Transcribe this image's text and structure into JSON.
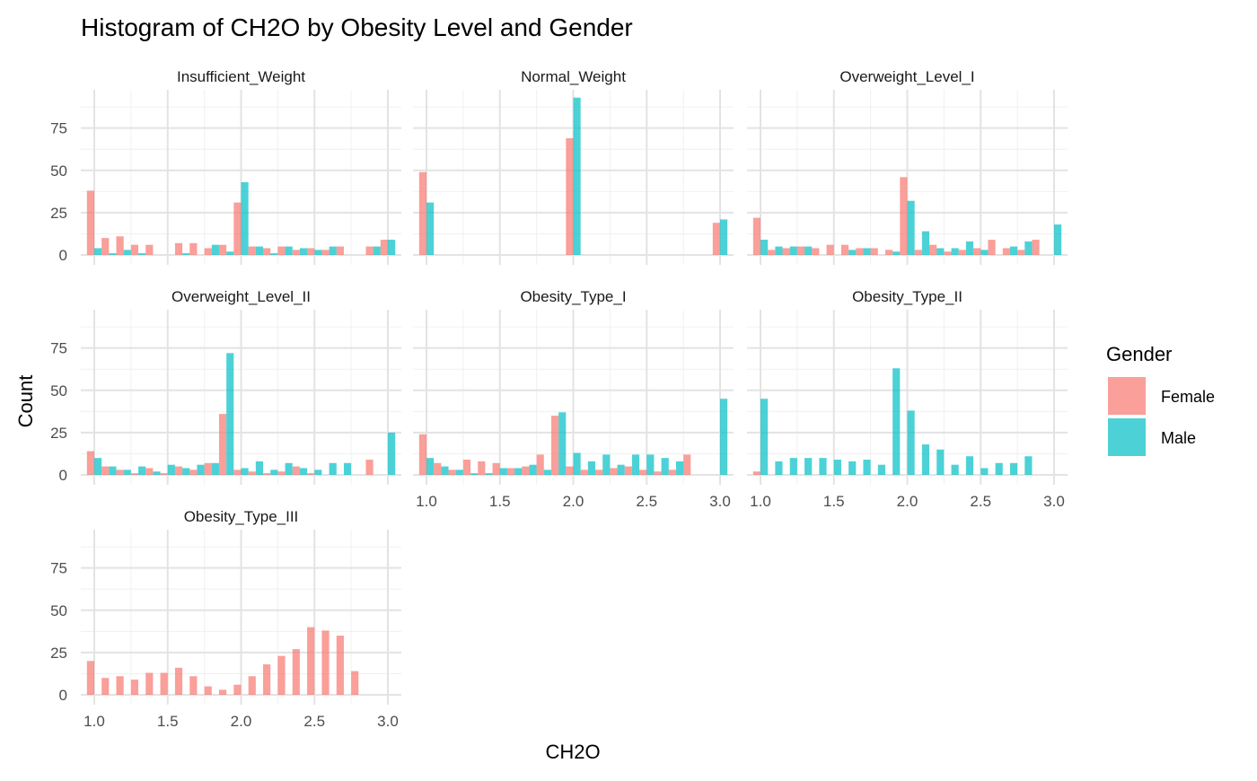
{
  "chart_data": {
    "type": "bar",
    "title": "Histogram of CH2O by Obesity Level and Gender",
    "xlabel": "CH2O",
    "ylabel": "Count",
    "xlim": [
      1.0,
      3.0
    ],
    "ylim": [
      0,
      95
    ],
    "x_ticks": [
      "1.0",
      "1.5",
      "2.0",
      "2.5",
      "3.0"
    ],
    "y_ticks": [
      "0",
      "25",
      "50",
      "75"
    ],
    "grid": true,
    "bin_centers": [
      1.0,
      1.1,
      1.2,
      1.3,
      1.4,
      1.5,
      1.6,
      1.7,
      1.8,
      1.9,
      2.0,
      2.1,
      2.2,
      2.3,
      2.4,
      2.5,
      2.6,
      2.7,
      2.8,
      2.9,
      3.0
    ],
    "legend": {
      "title": "Gender",
      "position": "right",
      "entries": [
        {
          "name": "Female",
          "color": "#F8766D"
        },
        {
          "name": "Male",
          "color": "#00BFC4"
        }
      ]
    },
    "facets": [
      {
        "label": "Insufficient_Weight",
        "female": [
          38,
          10,
          11,
          6,
          6,
          0,
          7,
          7,
          4,
          6,
          31,
          5,
          4,
          5,
          3,
          4,
          3,
          5,
          0,
          5,
          9
        ],
        "male": [
          4,
          1,
          3,
          1,
          0,
          0,
          1,
          0,
          6,
          2,
          43,
          5,
          1,
          5,
          4,
          3,
          5,
          0,
          0,
          5,
          9
        ]
      },
      {
        "label": "Normal_Weight",
        "female": [
          49,
          0,
          0,
          0,
          0,
          0,
          0,
          0,
          0,
          0,
          69,
          0,
          0,
          0,
          0,
          0,
          0,
          0,
          0,
          0,
          19
        ],
        "male": [
          31,
          0,
          0,
          0,
          0,
          0,
          0,
          0,
          0,
          0,
          93,
          0,
          0,
          0,
          0,
          0,
          0,
          0,
          0,
          0,
          21
        ]
      },
      {
        "label": "Overweight_Level_I",
        "female": [
          22,
          3,
          4,
          5,
          4,
          6,
          6,
          4,
          4,
          3,
          46,
          3,
          6,
          2,
          3,
          4,
          9,
          4,
          3,
          9,
          0
        ],
        "male": [
          9,
          5,
          5,
          5,
          0,
          0,
          3,
          4,
          0,
          2,
          32,
          14,
          4,
          4,
          8,
          3,
          0,
          5,
          8,
          0,
          18
        ]
      },
      {
        "label": "Overweight_Level_II",
        "female": [
          14,
          5,
          3,
          1,
          4,
          1,
          5,
          3,
          7,
          36,
          3,
          2,
          1,
          2,
          5,
          1,
          0,
          0,
          0,
          9,
          0
        ],
        "male": [
          10,
          5,
          3,
          5,
          2,
          6,
          4,
          6,
          7,
          72,
          4,
          8,
          3,
          7,
          4,
          3,
          7,
          7,
          0,
          0,
          25
        ]
      },
      {
        "label": "Obesity_Type_I",
        "female": [
          24,
          7,
          3,
          9,
          8,
          7,
          4,
          5,
          12,
          35,
          5,
          3,
          3,
          4,
          5,
          3,
          2,
          3,
          12,
          0,
          0
        ],
        "male": [
          10,
          5,
          3,
          1,
          1,
          4,
          4,
          6,
          3,
          37,
          13,
          8,
          12,
          6,
          12,
          12,
          10,
          8,
          0,
          0,
          45
        ]
      },
      {
        "label": "Obesity_Type_II",
        "female": [
          2,
          0,
          0,
          0,
          0,
          0,
          0,
          0,
          0,
          0,
          0,
          0,
          0,
          0,
          0,
          0,
          0,
          0,
          0,
          0,
          0
        ],
        "male": [
          45,
          8,
          10,
          10,
          10,
          9,
          8,
          9,
          6,
          63,
          38,
          18,
          15,
          6,
          11,
          4,
          7,
          7,
          11,
          0,
          0
        ]
      },
      {
        "label": "Obesity_Type_III",
        "female": [
          20,
          10,
          11,
          9,
          13,
          13,
          16,
          11,
          5,
          3,
          6,
          11,
          18,
          23,
          27,
          40,
          38,
          35,
          14,
          0,
          0
        ],
        "male": [
          0,
          0,
          0,
          0,
          0,
          0,
          0,
          0,
          0,
          0,
          0,
          0,
          0,
          0,
          0,
          0,
          0,
          0,
          0,
          0,
          0
        ]
      }
    ]
  }
}
